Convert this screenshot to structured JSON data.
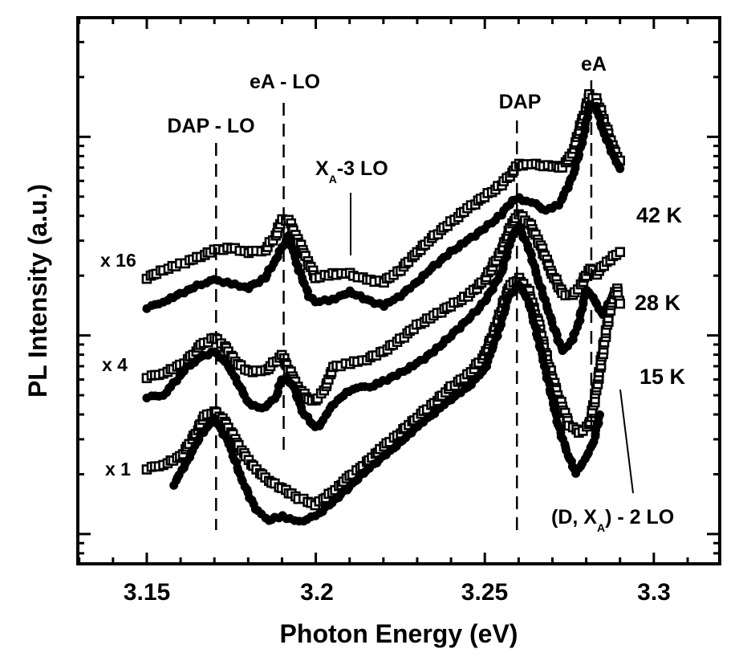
{
  "chart_data": {
    "type": "scatter",
    "title": "",
    "xlabel": "Photon Energy (eV)",
    "ylabel": "PL Intensity (a.u.)",
    "xlim": [
      3.1296,
      3.3195
    ],
    "ylim_log10": [
      -0.15,
      2.6
    ],
    "yscale": "log",
    "x_ticks": [
      3.15,
      3.2,
      3.25,
      3.3
    ],
    "x_tick_labels": [
      "3.15",
      "3.2",
      "3.25",
      "3.3"
    ],
    "x_minor_step": 0.01,
    "y_major_log10": [
      0,
      1,
      2
    ],
    "y_tick_labels_shown": false,
    "grid": false,
    "legend": null,
    "colors": {
      "ink": "#000000",
      "background": "#ffffff"
    },
    "marker_legend": {
      "open_square": "open squares",
      "filled_circle": "filled circles"
    },
    "reference_lines": [
      {
        "name": "DAP-LO",
        "label": "DAP - LO",
        "x": 3.1705,
        "style": "dashed"
      },
      {
        "name": "eA-LO",
        "label": "eA - LO",
        "x": 3.1905,
        "style": "dashed"
      },
      {
        "name": "DAP",
        "label": "DAP",
        "x": 3.2595,
        "style": "dashed"
      },
      {
        "name": "eA",
        "label": "eA",
        "x": 3.2815,
        "style": "dashed"
      }
    ],
    "annotations": [
      {
        "name": "xa-3lo",
        "text": "X",
        "sub": "A",
        "rest": "-3 LO",
        "pointer_x": 3.2095
      },
      {
        "name": "dxa-2lo",
        "text": "(D, X",
        "sub": "A",
        "rest": ") - 2 LO",
        "pointer_x": 3.288
      }
    ],
    "multipliers": [
      {
        "name": "x16",
        "text": "x 16"
      },
      {
        "name": "x4",
        "text": "x 4"
      },
      {
        "name": "x1",
        "text": "x 1"
      }
    ],
    "temperatures": [
      {
        "name": "42k",
        "text": "42 K"
      },
      {
        "name": "28k",
        "text": "28 K"
      },
      {
        "name": "15k",
        "text": "15 K"
      }
    ],
    "series": [
      {
        "name": "42K open squares (x16)",
        "marker": "open_square",
        "x": [
          3.15,
          3.155,
          3.16,
          3.165,
          3.17,
          3.175,
          3.18,
          3.185,
          3.188,
          3.19,
          3.192,
          3.195,
          3.198,
          3.2,
          3.205,
          3.21,
          3.215,
          3.22,
          3.225,
          3.23,
          3.235,
          3.24,
          3.245,
          3.25,
          3.255,
          3.258,
          3.26,
          3.265,
          3.27,
          3.273,
          3.276,
          3.279,
          3.281,
          3.283,
          3.285,
          3.288,
          3.29
        ],
        "y": [
          1.29,
          1.33,
          1.36,
          1.39,
          1.43,
          1.44,
          1.42,
          1.43,
          1.5,
          1.58,
          1.58,
          1.47,
          1.36,
          1.29,
          1.31,
          1.31,
          1.28,
          1.27,
          1.33,
          1.42,
          1.5,
          1.57,
          1.64,
          1.7,
          1.76,
          1.82,
          1.86,
          1.86,
          1.85,
          1.85,
          1.92,
          2.09,
          2.21,
          2.19,
          2.09,
          1.94,
          1.88
        ]
      },
      {
        "name": "42K filled circles (x16)",
        "marker": "filled_circle",
        "x": [
          3.15,
          3.155,
          3.16,
          3.165,
          3.17,
          3.175,
          3.18,
          3.185,
          3.188,
          3.19,
          3.192,
          3.195,
          3.198,
          3.2,
          3.205,
          3.21,
          3.215,
          3.22,
          3.225,
          3.23,
          3.235,
          3.24,
          3.245,
          3.25,
          3.255,
          3.258,
          3.26,
          3.265,
          3.268,
          3.272,
          3.276,
          3.279,
          3.281,
          3.283,
          3.285,
          3.288,
          3.29
        ],
        "y": [
          1.14,
          1.17,
          1.21,
          1.25,
          1.28,
          1.26,
          1.24,
          1.29,
          1.38,
          1.44,
          1.5,
          1.33,
          1.2,
          1.17,
          1.18,
          1.22,
          1.18,
          1.15,
          1.2,
          1.27,
          1.35,
          1.42,
          1.48,
          1.54,
          1.61,
          1.68,
          1.69,
          1.66,
          1.63,
          1.66,
          1.8,
          1.99,
          2.16,
          2.15,
          2.03,
          1.91,
          1.84
        ]
      },
      {
        "name": "28K open squares (x4)",
        "marker": "open_square",
        "x": [
          3.15,
          3.155,
          3.16,
          3.163,
          3.166,
          3.17,
          3.173,
          3.176,
          3.18,
          3.185,
          3.19,
          3.192,
          3.195,
          3.198,
          3.2,
          3.203,
          3.205,
          3.21,
          3.215,
          3.22,
          3.225,
          3.23,
          3.235,
          3.24,
          3.245,
          3.25,
          3.255,
          3.258,
          3.26,
          3.263,
          3.266,
          3.27,
          3.273,
          3.276,
          3.279,
          3.281,
          3.283,
          3.286,
          3.29
        ],
        "y": [
          0.79,
          0.81,
          0.85,
          0.89,
          0.95,
          0.99,
          0.95,
          0.87,
          0.82,
          0.82,
          0.9,
          0.83,
          0.73,
          0.68,
          0.67,
          0.74,
          0.84,
          0.86,
          0.88,
          0.92,
          0.98,
          1.05,
          1.1,
          1.15,
          1.2,
          1.28,
          1.43,
          1.56,
          1.61,
          1.57,
          1.47,
          1.31,
          1.21,
          1.2,
          1.27,
          1.34,
          1.31,
          1.37,
          1.42
        ]
      },
      {
        "name": "28K filled circles (x4)",
        "marker": "filled_circle",
        "x": [
          3.15,
          3.155,
          3.158,
          3.162,
          3.166,
          3.17,
          3.174,
          3.178,
          3.18,
          3.184,
          3.188,
          3.19,
          3.193,
          3.196,
          3.199,
          3.201,
          3.204,
          3.208,
          3.212,
          3.216,
          3.22,
          3.225,
          3.23,
          3.235,
          3.24,
          3.245,
          3.25,
          3.255,
          3.258,
          3.26,
          3.263,
          3.266,
          3.27,
          3.273,
          3.276,
          3.278,
          3.28,
          3.282,
          3.285,
          3.288
        ],
        "y": [
          0.69,
          0.7,
          0.76,
          0.84,
          0.89,
          0.92,
          0.85,
          0.73,
          0.66,
          0.63,
          0.68,
          0.78,
          0.76,
          0.62,
          0.55,
          0.54,
          0.63,
          0.7,
          0.74,
          0.74,
          0.77,
          0.81,
          0.86,
          0.92,
          1.0,
          1.08,
          1.17,
          1.32,
          1.5,
          1.55,
          1.44,
          1.27,
          1.06,
          0.92,
          0.98,
          1.08,
          1.23,
          1.19,
          1.1,
          1.21
        ]
      },
      {
        "name": "15K open squares (x1)",
        "marker": "open_square",
        "x": [
          3.15,
          3.155,
          3.16,
          3.164,
          3.167,
          3.17,
          3.173,
          3.176,
          3.18,
          3.185,
          3.19,
          3.195,
          3.2,
          3.205,
          3.21,
          3.215,
          3.22,
          3.225,
          3.23,
          3.235,
          3.24,
          3.245,
          3.25,
          3.254,
          3.257,
          3.26,
          3.263,
          3.266,
          3.269,
          3.272,
          3.275,
          3.278,
          3.281,
          3.283,
          3.285,
          3.287,
          3.289,
          3.29
        ],
        "y": [
          0.33,
          0.35,
          0.39,
          0.49,
          0.59,
          0.62,
          0.57,
          0.48,
          0.37,
          0.28,
          0.23,
          0.18,
          0.15,
          0.21,
          0.29,
          0.36,
          0.44,
          0.51,
          0.59,
          0.66,
          0.74,
          0.8,
          0.9,
          1.08,
          1.24,
          1.29,
          1.22,
          1.05,
          0.84,
          0.68,
          0.55,
          0.51,
          0.55,
          0.72,
          0.93,
          1.13,
          1.24,
          1.16
        ]
      },
      {
        "name": "15K filled circles (x1)",
        "marker": "filled_circle",
        "x": [
          3.158,
          3.162,
          3.166,
          3.17,
          3.174,
          3.178,
          3.182,
          3.186,
          3.19,
          3.195,
          3.2,
          3.205,
          3.21,
          3.215,
          3.22,
          3.225,
          3.23,
          3.235,
          3.24,
          3.245,
          3.25,
          3.254,
          3.257,
          3.26,
          3.263,
          3.266,
          3.269,
          3.272,
          3.275,
          3.277,
          3.279,
          3.282,
          3.284
        ],
        "y": [
          0.25,
          0.37,
          0.5,
          0.58,
          0.47,
          0.28,
          0.13,
          0.07,
          0.09,
          0.06,
          0.09,
          0.16,
          0.24,
          0.32,
          0.39,
          0.46,
          0.54,
          0.61,
          0.68,
          0.74,
          0.83,
          1.02,
          1.19,
          1.26,
          1.17,
          0.97,
          0.75,
          0.53,
          0.38,
          0.31,
          0.36,
          0.45,
          0.6
        ]
      }
    ]
  }
}
